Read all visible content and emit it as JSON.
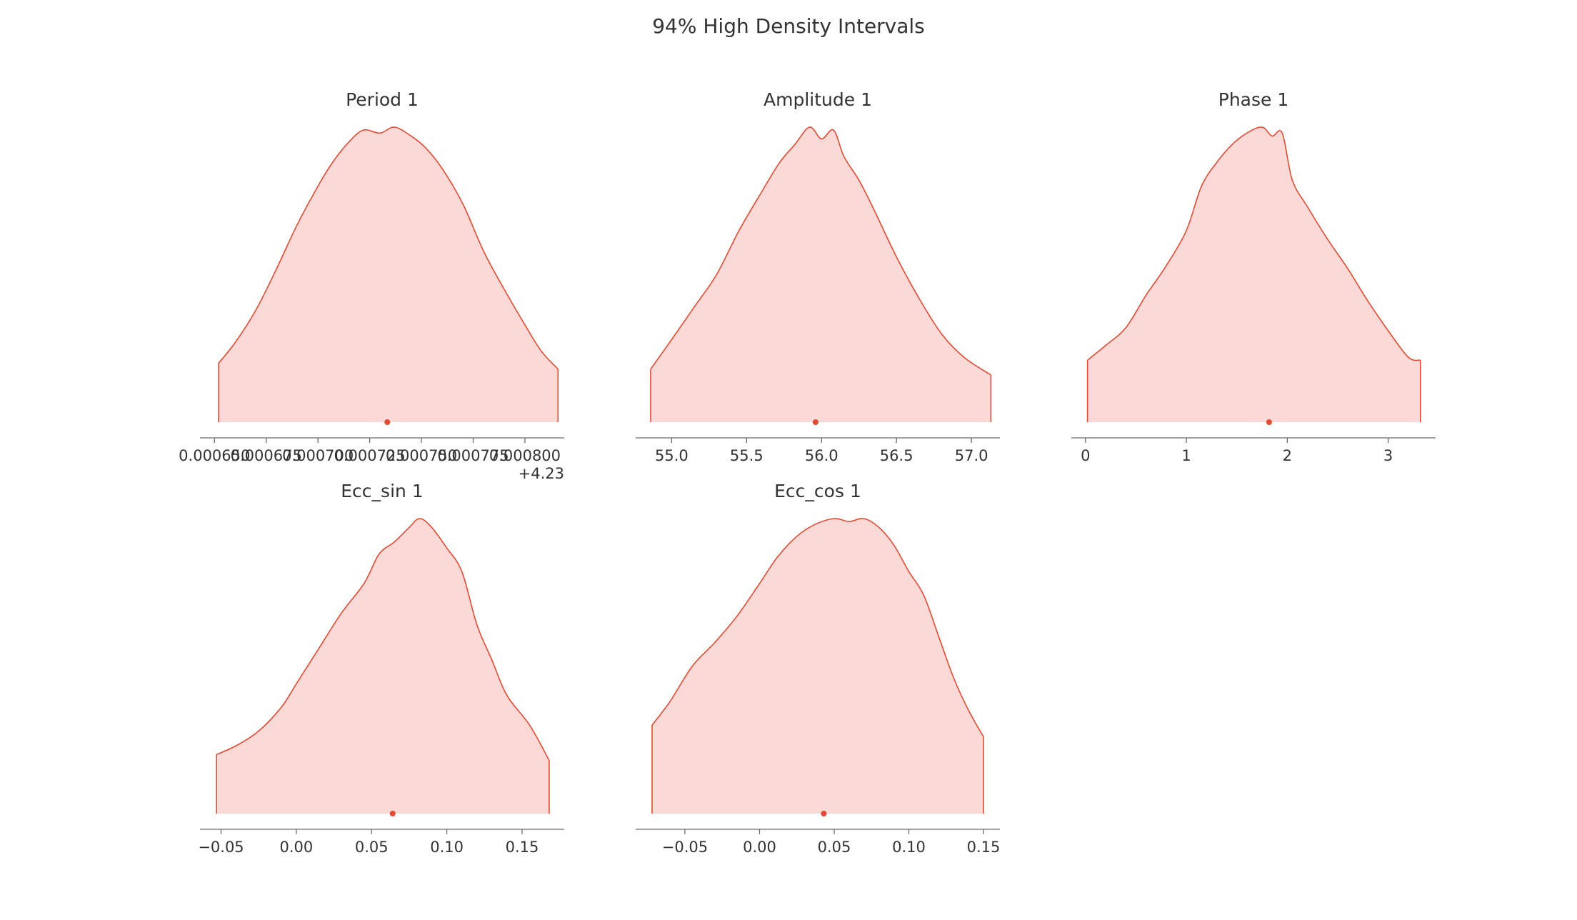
{
  "figure": {
    "title": "94% High Density Intervals"
  },
  "colors": {
    "accent": "#e24a33",
    "fill": "#fbd9d7",
    "axis": "#6b6b6b",
    "text": "#333333"
  },
  "chart_data": [
    {
      "type": "area",
      "title": "Period 1",
      "xlim": [
        0.000643,
        0.000819
      ],
      "hdi": [
        0.000652,
        0.000816
      ],
      "point_estimate": 0.0007335,
      "ticks": [
        0.00065,
        0.000675,
        0.0007,
        0.000725,
        0.00075,
        0.000775,
        0.0008
      ],
      "tick_labels": [
        "0.000650",
        "0.000675",
        "0.000700",
        "0.000725",
        "0.000750",
        "0.000775",
        "0.000800"
      ],
      "offset_label": "+4.23",
      "x": [
        0.000652,
        0.00066,
        0.00067,
        0.00068,
        0.00069,
        0.0007,
        0.000707,
        0.000715,
        0.000722,
        0.00073,
        0.000737,
        0.000745,
        0.000752,
        0.00076,
        0.00077,
        0.00078,
        0.00079,
        0.0008,
        0.000808,
        0.000816
      ],
      "density": [
        0.2,
        0.27,
        0.38,
        0.52,
        0.67,
        0.8,
        0.88,
        0.95,
        0.99,
        0.98,
        1.0,
        0.97,
        0.93,
        0.86,
        0.74,
        0.58,
        0.45,
        0.33,
        0.24,
        0.18
      ]
    },
    {
      "type": "area",
      "title": "Amplitude 1",
      "xlim": [
        54.76,
        57.19
      ],
      "hdi": [
        54.86,
        57.13
      ],
      "point_estimate": 55.96,
      "ticks": [
        55.0,
        55.5,
        56.0,
        56.5,
        57.0
      ],
      "tick_labels": [
        "55.0",
        "55.5",
        "56.0",
        "56.5",
        "57.0"
      ],
      "x": [
        54.86,
        55.0,
        55.15,
        55.3,
        55.45,
        55.6,
        55.72,
        55.82,
        55.92,
        56.0,
        56.08,
        56.15,
        56.25,
        56.35,
        56.5,
        56.65,
        56.8,
        56.95,
        57.13
      ],
      "density": [
        0.18,
        0.28,
        0.39,
        0.5,
        0.65,
        0.78,
        0.88,
        0.94,
        1.0,
        0.96,
        0.99,
        0.9,
        0.82,
        0.72,
        0.56,
        0.42,
        0.3,
        0.22,
        0.16
      ]
    },
    {
      "type": "area",
      "title": "Phase 1",
      "xlim": [
        -0.14,
        3.47
      ],
      "hdi": [
        0.02,
        3.32
      ],
      "point_estimate": 1.82,
      "ticks": [
        0,
        1,
        2,
        3
      ],
      "tick_labels": [
        "0",
        "1",
        "2",
        "3"
      ],
      "x": [
        0.02,
        0.2,
        0.4,
        0.6,
        0.8,
        1.0,
        1.15,
        1.3,
        1.45,
        1.6,
        1.75,
        1.85,
        1.95,
        2.05,
        2.2,
        2.4,
        2.6,
        2.8,
        3.0,
        3.2,
        3.32
      ],
      "density": [
        0.21,
        0.26,
        0.32,
        0.43,
        0.53,
        0.65,
        0.8,
        0.88,
        0.94,
        0.98,
        1.0,
        0.97,
        0.98,
        0.82,
        0.73,
        0.62,
        0.52,
        0.41,
        0.31,
        0.22,
        0.21
      ]
    },
    {
      "type": "area",
      "title": "Ecc_sin 1",
      "xlim": [
        -0.064,
        0.178
      ],
      "hdi": [
        -0.053,
        0.168
      ],
      "point_estimate": 0.064,
      "ticks": [
        -0.05,
        0.0,
        0.05,
        0.1,
        0.15
      ],
      "tick_labels": [
        "−0.05",
        "0.00",
        "0.05",
        "0.10",
        "0.15"
      ],
      "x": [
        -0.053,
        -0.04,
        -0.025,
        -0.01,
        0.0,
        0.015,
        0.03,
        0.045,
        0.055,
        0.065,
        0.075,
        0.082,
        0.09,
        0.1,
        0.11,
        0.12,
        0.13,
        0.14,
        0.155,
        0.168
      ],
      "density": [
        0.2,
        0.23,
        0.28,
        0.36,
        0.44,
        0.56,
        0.68,
        0.78,
        0.88,
        0.92,
        0.97,
        1.0,
        0.97,
        0.9,
        0.82,
        0.64,
        0.52,
        0.4,
        0.3,
        0.18
      ]
    },
    {
      "type": "area",
      "title": "Ecc_cos 1",
      "xlim": [
        -0.083,
        0.161
      ],
      "hdi": [
        -0.072,
        0.15
      ],
      "point_estimate": 0.043,
      "ticks": [
        -0.05,
        0.0,
        0.05,
        0.1,
        0.15
      ],
      "tick_labels": [
        "−0.05",
        "0.00",
        "0.05",
        "0.10",
        "0.15"
      ],
      "x": [
        -0.072,
        -0.06,
        -0.045,
        -0.03,
        -0.015,
        0.0,
        0.012,
        0.025,
        0.037,
        0.05,
        0.06,
        0.07,
        0.08,
        0.09,
        0.1,
        0.11,
        0.12,
        0.13,
        0.14,
        0.15
      ],
      "density": [
        0.3,
        0.38,
        0.5,
        0.58,
        0.67,
        0.78,
        0.87,
        0.94,
        0.98,
        1.0,
        0.99,
        1.0,
        0.97,
        0.91,
        0.82,
        0.74,
        0.6,
        0.46,
        0.35,
        0.26
      ]
    }
  ]
}
